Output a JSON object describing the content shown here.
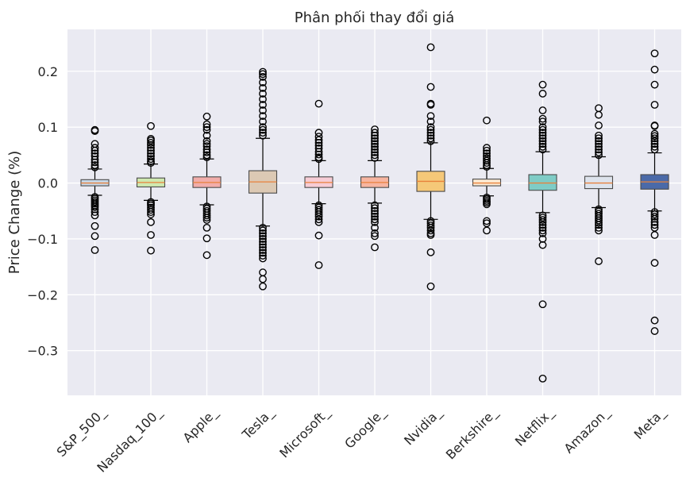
{
  "chart_data": {
    "type": "box",
    "title": "Phân phối thay đổi giá",
    "xlabel": "",
    "ylabel": "Price Change (%)",
    "ylim": [
      -0.38,
      0.275
    ],
    "yticks": [
      0.2,
      0.1,
      0.0,
      -0.1,
      -0.2,
      -0.3
    ],
    "ytick_labels": [
      "0.2",
      "0.1",
      "0.0",
      "−0.1",
      "−0.2",
      "−0.3"
    ],
    "grid": true,
    "categories": [
      "S&P_500_",
      "Nasdaq_100_",
      "Apple_",
      "Tesla_",
      "Microsoft_",
      "Google_",
      "Nvidia_",
      "Berkshire_",
      "Netflix_",
      "Amazon_",
      "Meta_"
    ],
    "series": [
      {
        "q1": -0.005,
        "median": 0.0,
        "q3": 0.006,
        "whisker_low": -0.022,
        "whisker_high": 0.025,
        "color": "#c9d9e8",
        "outliers": [
          0.095,
          0.093,
          0.07,
          0.063,
          0.058,
          0.053,
          0.048,
          0.042,
          0.037,
          0.032,
          0.028,
          -0.025,
          -0.028,
          -0.031,
          -0.034,
          -0.037,
          -0.04,
          -0.043,
          -0.047,
          -0.052,
          -0.058,
          -0.077,
          -0.095,
          -0.12
        ]
      },
      {
        "q1": -0.007,
        "median": 0.001,
        "q3": 0.009,
        "whisker_low": -0.031,
        "whisker_high": 0.034,
        "color": "#cfe9b0",
        "outliers": [
          0.102,
          0.079,
          0.076,
          0.072,
          0.068,
          0.063,
          0.058,
          0.053,
          0.048,
          0.043,
          0.039,
          0.036,
          -0.034,
          -0.037,
          -0.04,
          -0.044,
          -0.048,
          -0.052,
          -0.056,
          -0.07,
          -0.093,
          -0.121
        ]
      },
      {
        "q1": -0.008,
        "median": 0.001,
        "q3": 0.011,
        "whisker_low": -0.039,
        "whisker_high": 0.043,
        "color": "#f2adaa",
        "outliers": [
          0.119,
          0.105,
          0.1,
          0.095,
          0.085,
          0.075,
          0.07,
          0.066,
          0.06,
          0.055,
          0.05,
          0.046,
          -0.042,
          -0.046,
          -0.05,
          -0.054,
          -0.058,
          -0.062,
          -0.066,
          -0.08,
          -0.099,
          -0.129
        ]
      },
      {
        "q1": -0.018,
        "median": 0.002,
        "q3": 0.022,
        "whisker_low": -0.077,
        "whisker_high": 0.08,
        "color": "#dcc9b4",
        "outliers": [
          0.199,
          0.195,
          0.19,
          0.18,
          0.17,
          0.16,
          0.15,
          0.14,
          0.13,
          0.12,
          0.11,
          0.1,
          0.095,
          0.09,
          0.085,
          -0.08,
          -0.085,
          -0.09,
          -0.095,
          -0.1,
          -0.105,
          -0.11,
          -0.115,
          -0.12,
          -0.125,
          -0.13,
          -0.135,
          -0.16,
          -0.172,
          -0.185
        ]
      },
      {
        "q1": -0.008,
        "median": 0.001,
        "q3": 0.011,
        "whisker_low": -0.037,
        "whisker_high": 0.04,
        "color": "#f7ccd5",
        "outliers": [
          0.142,
          0.09,
          0.083,
          0.077,
          0.072,
          0.067,
          0.062,
          0.056,
          0.051,
          0.046,
          0.043,
          -0.04,
          -0.044,
          -0.048,
          -0.052,
          -0.056,
          -0.06,
          -0.065,
          -0.07,
          -0.094,
          -0.147
        ]
      },
      {
        "q1": -0.008,
        "median": 0.001,
        "q3": 0.011,
        "whisker_low": -0.036,
        "whisker_high": 0.04,
        "color": "#f7b5a0",
        "outliers": [
          0.096,
          0.09,
          0.085,
          0.08,
          0.075,
          0.07,
          0.065,
          0.06,
          0.055,
          0.05,
          0.045,
          -0.04,
          -0.045,
          -0.05,
          -0.055,
          -0.06,
          -0.065,
          -0.07,
          -0.08,
          -0.09,
          -0.095,
          -0.115
        ]
      },
      {
        "q1": -0.015,
        "median": 0.003,
        "q3": 0.021,
        "whisker_low": -0.065,
        "whisker_high": 0.072,
        "color": "#f5c878",
        "outliers": [
          0.243,
          0.172,
          0.142,
          0.14,
          0.12,
          0.11,
          0.1,
          0.095,
          0.09,
          0.085,
          0.08,
          0.075,
          -0.068,
          -0.072,
          -0.076,
          -0.08,
          -0.085,
          -0.09,
          -0.093,
          -0.124,
          -0.185
        ]
      },
      {
        "q1": -0.005,
        "median": 0.0,
        "q3": 0.007,
        "whisker_low": -0.023,
        "whisker_high": 0.026,
        "color": "#fcebd4",
        "outliers": [
          0.112,
          0.063,
          0.058,
          0.053,
          0.048,
          0.044,
          0.04,
          0.036,
          0.032,
          0.029,
          -0.026,
          -0.029,
          -0.032,
          -0.035,
          -0.038,
          -0.068,
          -0.072,
          -0.085
        ]
      },
      {
        "q1": -0.013,
        "median": 0.0,
        "q3": 0.015,
        "whisker_low": -0.053,
        "whisker_high": 0.056,
        "color": "#7fccc6",
        "outliers": [
          0.176,
          0.16,
          0.13,
          0.115,
          0.11,
          0.1,
          0.095,
          0.09,
          0.085,
          0.08,
          0.075,
          0.07,
          0.065,
          0.06,
          -0.058,
          -0.062,
          -0.066,
          -0.07,
          -0.075,
          -0.08,
          -0.085,
          -0.09,
          -0.1,
          -0.111,
          -0.217,
          -0.35
        ]
      },
      {
        "q1": -0.01,
        "median": 0.0,
        "q3": 0.012,
        "whisker_low": -0.044,
        "whisker_high": 0.047,
        "color": "#dde3ec",
        "outliers": [
          0.134,
          0.122,
          0.103,
          0.085,
          0.08,
          0.075,
          0.07,
          0.065,
          0.06,
          0.055,
          0.05,
          -0.047,
          -0.051,
          -0.055,
          -0.059,
          -0.063,
          -0.067,
          -0.071,
          -0.075,
          -0.08,
          -0.085,
          -0.14
        ]
      },
      {
        "q1": -0.011,
        "median": 0.002,
        "q3": 0.015,
        "whisker_low": -0.05,
        "whisker_high": 0.054,
        "color": "#4b6aa8",
        "outliers": [
          0.232,
          0.203,
          0.176,
          0.14,
          0.103,
          0.102,
          0.088,
          0.084,
          0.08,
          0.075,
          0.07,
          0.065,
          0.06,
          -0.052,
          -0.056,
          -0.06,
          -0.064,
          -0.07,
          -0.075,
          -0.08,
          -0.093,
          -0.143,
          -0.246,
          -0.265
        ]
      }
    ]
  }
}
